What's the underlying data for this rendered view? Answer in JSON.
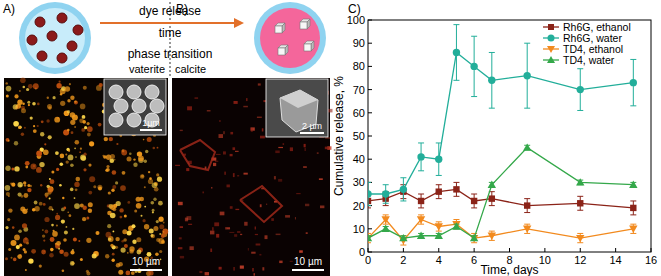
{
  "figure": {
    "panel_labels": [
      "A)",
      "B)",
      "C)"
    ],
    "schematic": {
      "arrow_top": "dye release",
      "arrow_bottom": "time",
      "transition": "phase transition",
      "left_phase": "vaterite",
      "right_phase": "calcite"
    },
    "micrographs": [
      {
        "inset_scale": "1µm",
        "scale": "10 µm"
      },
      {
        "inset_scale": "2 µm",
        "scale": "10 µm"
      }
    ]
  },
  "chart_data": {
    "type": "line",
    "x_label": "Time, days",
    "y_label": "Cumulative release, %",
    "x": [
      0,
      1,
      2,
      3,
      4,
      5,
      6,
      7,
      9,
      12,
      15
    ],
    "xlim": [
      0,
      16
    ],
    "xticks": [
      0,
      2,
      4,
      6,
      8,
      10,
      12,
      14,
      16
    ],
    "ylim": [
      0,
      100
    ],
    "yticks": [
      0,
      10,
      20,
      30,
      40,
      50,
      60,
      70,
      80,
      90,
      100
    ],
    "grid": false,
    "legend": "upper right",
    "series": [
      {
        "name": "Rh6G, ethanol",
        "color": "#8b2318",
        "marker": "square",
        "line_style": "solid",
        "values": [
          22,
          23,
          26,
          22,
          26,
          27,
          22,
          23,
          20,
          21,
          19
        ],
        "errors": [
          3,
          3,
          3,
          3,
          3,
          3,
          3,
          3,
          3,
          3,
          3
        ]
      },
      {
        "name": "Rh6G, water",
        "color": "#22ae9a",
        "marker": "circle",
        "line_style": "solid",
        "values": [
          25,
          25,
          27,
          41,
          40,
          86,
          80,
          74,
          76,
          70,
          73
        ],
        "errors": [
          5,
          4,
          5,
          6,
          7,
          12,
          13,
          12,
          14,
          9,
          10
        ]
      },
      {
        "name": "TD4, ethanol",
        "color": "#f28a1e",
        "marker": "triangle-down",
        "line_style": "solid",
        "values": [
          6,
          14,
          5,
          14,
          11,
          12,
          6,
          7,
          10,
          6,
          10
        ],
        "errors": [
          2,
          2,
          2,
          2,
          2,
          2,
          2,
          2,
          2,
          2,
          2
        ]
      },
      {
        "name": "TD4, water",
        "color": "#34a84a",
        "marker": "triangle-up",
        "line_style": "solid",
        "values": [
          6,
          10,
          6,
          7,
          7,
          11,
          6,
          29,
          45,
          30,
          29
        ],
        "errors": [
          1,
          1,
          1,
          1,
          1,
          1,
          1,
          1,
          1,
          1,
          1
        ]
      }
    ]
  }
}
